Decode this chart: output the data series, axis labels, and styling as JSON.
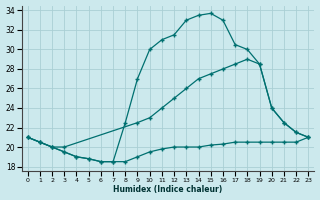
{
  "xlabel": "Humidex (Indice chaleur)",
  "xlim": [
    -0.5,
    23.5
  ],
  "ylim": [
    17.5,
    34.5
  ],
  "yticks": [
    18,
    20,
    22,
    24,
    26,
    28,
    30,
    32,
    34
  ],
  "xticks": [
    0,
    1,
    2,
    3,
    4,
    5,
    6,
    7,
    8,
    9,
    10,
    11,
    12,
    13,
    14,
    15,
    16,
    17,
    18,
    19,
    20,
    21,
    22,
    23
  ],
  "background_color": "#cce9ed",
  "grid_color": "#aacfd4",
  "line_color": "#007070",
  "line1_x": [
    0,
    1,
    2,
    3,
    4,
    5,
    6,
    7,
    8,
    9,
    10,
    11,
    12,
    13,
    14,
    15,
    16,
    17,
    18,
    19,
    20,
    21,
    22,
    23
  ],
  "line1_y": [
    21.0,
    20.5,
    20.0,
    19.5,
    19.0,
    18.8,
    18.5,
    18.5,
    18.5,
    19.0,
    19.5,
    19.8,
    20.0,
    20.0,
    20.0,
    20.2,
    20.3,
    20.5,
    20.5,
    20.5,
    20.5,
    20.5,
    20.5,
    21.0
  ],
  "line2_x": [
    0,
    1,
    2,
    3,
    4,
    5,
    6,
    7,
    8,
    9,
    10,
    11,
    12,
    13,
    14,
    15,
    16,
    17,
    18,
    19,
    20,
    21,
    22,
    23
  ],
  "line2_y": [
    21.0,
    20.5,
    20.0,
    19.5,
    19.0,
    18.8,
    18.5,
    18.5,
    22.5,
    27.0,
    30.0,
    31.0,
    31.5,
    33.0,
    33.5,
    33.7,
    33.0,
    30.5,
    30.0,
    28.5,
    24.0,
    22.5,
    21.5,
    21.0
  ],
  "line3_x": [
    0,
    1,
    2,
    3,
    9,
    10,
    11,
    12,
    13,
    14,
    15,
    16,
    17,
    18,
    19,
    20,
    21,
    22,
    23
  ],
  "line3_y": [
    21.0,
    20.5,
    20.0,
    20.0,
    22.5,
    23.0,
    24.0,
    25.0,
    26.0,
    27.0,
    27.5,
    28.0,
    28.5,
    29.0,
    28.5,
    24.0,
    22.5,
    21.5,
    21.0
  ]
}
